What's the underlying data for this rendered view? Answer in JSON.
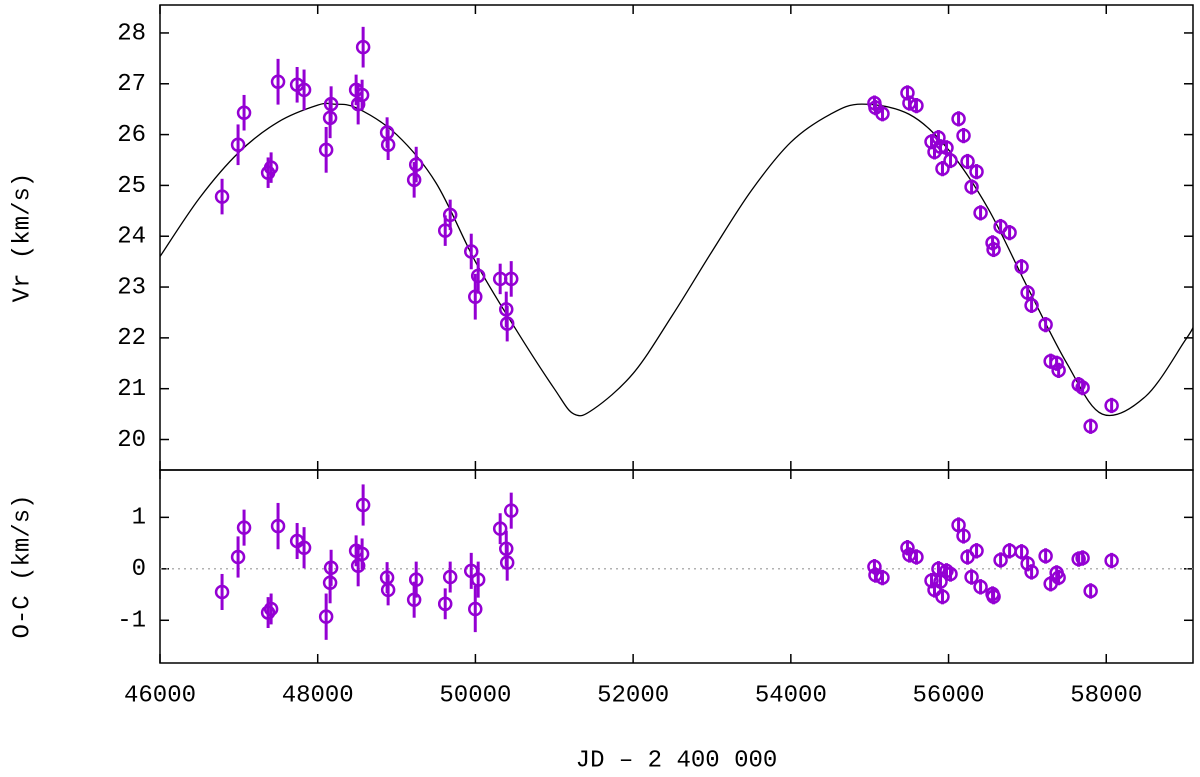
{
  "chart_data": [
    {
      "type": "scatter",
      "ylabel": "Vr (km/s)",
      "color": "#9400d3",
      "xlim": [
        46000,
        59100
      ],
      "ylim": [
        19.4,
        28.55
      ],
      "yticks": [
        20,
        21,
        22,
        23,
        24,
        25,
        26,
        27,
        28
      ],
      "x": [
        46787,
        46990,
        47066,
        47371,
        47409,
        47497,
        47739,
        47827,
        48107,
        48157,
        48170,
        48487,
        48513,
        48563,
        48576,
        48880,
        48893,
        49223,
        49249,
        49617,
        49680,
        49947,
        49998,
        50035,
        50314,
        50391,
        50403,
        50454,
        55060,
        55073,
        55162,
        55479,
        55504,
        55593,
        55784,
        55822,
        55872,
        55898,
        55923,
        55974,
        56025,
        56127,
        56190,
        56241,
        56292,
        56355,
        56406,
        56558,
        56571,
        56660,
        56774,
        56926,
        57003,
        57053,
        57231,
        57295,
        57371,
        57396,
        57650,
        57700,
        57802,
        58068
      ],
      "values": [
        24.78,
        25.8,
        26.43,
        25.25,
        25.35,
        27.04,
        26.98,
        26.88,
        25.7,
        26.33,
        26.6,
        26.88,
        26.6,
        26.78,
        27.72,
        26.04,
        25.8,
        25.11,
        25.41,
        24.11,
        24.42,
        23.7,
        22.81,
        23.22,
        23.16,
        22.56,
        22.28,
        23.16,
        26.62,
        26.53,
        26.41,
        26.82,
        26.62,
        26.57,
        25.86,
        25.66,
        25.94,
        25.76,
        25.33,
        25.74,
        25.49,
        26.31,
        25.98,
        25.47,
        24.97,
        25.27,
        24.46,
        23.87,
        23.74,
        24.19,
        24.07,
        23.4,
        22.89,
        22.64,
        22.26,
        21.54,
        21.5,
        21.36,
        21.08,
        21.02,
        20.26,
        20.67
      ],
      "errors": [
        0.35,
        0.4,
        0.35,
        0.3,
        0.3,
        0.45,
        0.35,
        0.4,
        0.45,
        0.4,
        0.35,
        0.3,
        0.4,
        0.3,
        0.4,
        0.3,
        0.3,
        0.35,
        0.35,
        0.3,
        0.3,
        0.35,
        0.45,
        0.35,
        0.3,
        0.35,
        0.35,
        0.35,
        0.15,
        0.15,
        0.15,
        0.15,
        0.15,
        0.15,
        0.15,
        0.15,
        0.15,
        0.15,
        0.15,
        0.15,
        0.15,
        0.15,
        0.15,
        0.15,
        0.15,
        0.15,
        0.15,
        0.15,
        0.15,
        0.15,
        0.15,
        0.15,
        0.15,
        0.15,
        0.15,
        0.15,
        0.15,
        0.15,
        0.15,
        0.15,
        0.15,
        0.15
      ],
      "fit": {
        "color": "#000000",
        "x": [
          46000,
          46500,
          47000,
          47500,
          48000,
          48200,
          48500,
          49000,
          49500,
          50000,
          50500,
          51000,
          51250,
          51500,
          52000,
          52500,
          53000,
          53500,
          54000,
          54500,
          54900,
          55500,
          56000,
          56500,
          57000,
          57500,
          57950,
          58500,
          59000,
          59100
        ],
        "values": [
          23.6,
          24.75,
          25.65,
          26.25,
          26.58,
          26.6,
          26.52,
          26.0,
          25.05,
          23.5,
          22.2,
          21.0,
          20.5,
          20.6,
          21.3,
          22.45,
          23.7,
          24.9,
          25.85,
          26.4,
          26.6,
          26.4,
          25.7,
          24.55,
          23.0,
          21.5,
          20.5,
          20.85,
          21.95,
          22.2
        ]
      }
    },
    {
      "type": "scatter",
      "ylabel": "O-C (km/s)",
      "xlabel": "JD – 2 400 000",
      "color": "#9400d3",
      "xlim": [
        46000,
        59100
      ],
      "xticks": [
        46000,
        48000,
        50000,
        52000,
        54000,
        56000,
        58000
      ],
      "ylim": [
        -1.83,
        1.92
      ],
      "yticks": [
        -1,
        0,
        1
      ],
      "reference_line": 0,
      "x": [
        46787,
        46990,
        47066,
        47371,
        47409,
        47497,
        47739,
        47827,
        48107,
        48157,
        48170,
        48487,
        48513,
        48563,
        48576,
        48880,
        48893,
        49223,
        49249,
        49617,
        49680,
        49947,
        49998,
        50035,
        50314,
        50391,
        50403,
        50454,
        55060,
        55073,
        55162,
        55479,
        55504,
        55593,
        55784,
        55822,
        55872,
        55898,
        55923,
        55974,
        56025,
        56127,
        56190,
        56241,
        56292,
        56355,
        56406,
        56558,
        56571,
        56660,
        56774,
        56926,
        57003,
        57053,
        57231,
        57295,
        57371,
        57396,
        57650,
        57700,
        57802,
        58068
      ],
      "values": [
        -0.45,
        0.23,
        0.8,
        -0.85,
        -0.78,
        0.83,
        0.54,
        0.41,
        -0.93,
        -0.27,
        0.02,
        0.35,
        0.06,
        0.29,
        1.24,
        -0.17,
        -0.41,
        -0.6,
        -0.21,
        -0.68,
        -0.16,
        -0.04,
        -0.78,
        -0.21,
        0.78,
        0.39,
        0.12,
        1.13,
        0.04,
        -0.12,
        -0.17,
        0.41,
        0.27,
        0.23,
        -0.23,
        -0.41,
        0.0,
        -0.25,
        -0.54,
        -0.04,
        -0.1,
        0.85,
        0.64,
        0.23,
        -0.16,
        0.35,
        -0.35,
        -0.49,
        -0.54,
        0.17,
        0.35,
        0.33,
        0.1,
        -0.06,
        0.25,
        -0.29,
        -0.08,
        -0.17,
        0.19,
        0.21,
        -0.43,
        0.16
      ],
      "errors": [
        0.35,
        0.4,
        0.35,
        0.3,
        0.3,
        0.45,
        0.35,
        0.4,
        0.45,
        0.4,
        0.35,
        0.3,
        0.4,
        0.3,
        0.4,
        0.3,
        0.3,
        0.35,
        0.35,
        0.3,
        0.3,
        0.35,
        0.45,
        0.35,
        0.3,
        0.35,
        0.35,
        0.35,
        0.15,
        0.15,
        0.15,
        0.15,
        0.15,
        0.15,
        0.15,
        0.15,
        0.15,
        0.15,
        0.15,
        0.15,
        0.15,
        0.15,
        0.15,
        0.15,
        0.15,
        0.15,
        0.15,
        0.15,
        0.15,
        0.15,
        0.15,
        0.15,
        0.15,
        0.15,
        0.15,
        0.15,
        0.15,
        0.15,
        0.15,
        0.15,
        0.15,
        0.15
      ]
    }
  ]
}
